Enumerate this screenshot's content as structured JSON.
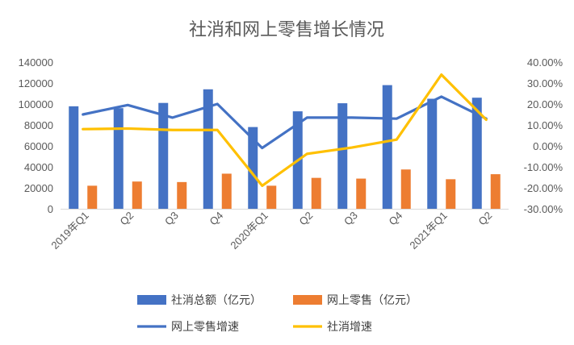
{
  "chart_data": {
    "type": "bar",
    "title": "社消和网上零售增长情况",
    "categories": [
      "2019年Q1",
      "Q2",
      "Q3",
      "Q4",
      "2020年Q1",
      "Q2",
      "Q3",
      "Q4",
      "2021年Q1",
      "Q2"
    ],
    "y_left_ticks": [
      "0",
      "20000",
      "40000",
      "60000",
      "80000",
      "100000",
      "120000",
      "140000"
    ],
    "y_left_range": [
      0,
      140000
    ],
    "y_right_ticks": [
      "-30.00%",
      "-20.00%",
      "-10.00%",
      "0.00%",
      "10.00%",
      "20.00%",
      "30.00%",
      "40.00%"
    ],
    "y_right_range": [
      -0.3,
      0.4
    ],
    "grid": false,
    "legend_position": "bottom",
    "series": [
      {
        "name": "社消总额（亿元）",
        "kind": "bar",
        "axis": "left",
        "color": "#4472C4",
        "values": [
          97800,
          96000,
          101000,
          114000,
          78000,
          93000,
          100700,
          118000,
          105000,
          106000
        ]
      },
      {
        "name": "网上零售（亿元）",
        "kind": "bar",
        "axis": "left",
        "color": "#ED7D31",
        "values": [
          22000,
          26000,
          25500,
          33500,
          22000,
          29500,
          28800,
          37500,
          28200,
          33000
        ]
      },
      {
        "name": "网上零售增速",
        "kind": "line",
        "axis": "right",
        "color": "#4472C4",
        "values": [
          0.15,
          0.195,
          0.135,
          0.2,
          -0.01,
          0.135,
          0.135,
          0.13,
          0.235,
          0.13
        ]
      },
      {
        "name": "社消增速",
        "kind": "line",
        "axis": "right",
        "color": "#FFC000",
        "values": [
          0.08,
          0.083,
          0.076,
          0.076,
          -0.19,
          -0.038,
          -0.008,
          0.03,
          0.34,
          0.125
        ]
      }
    ]
  }
}
